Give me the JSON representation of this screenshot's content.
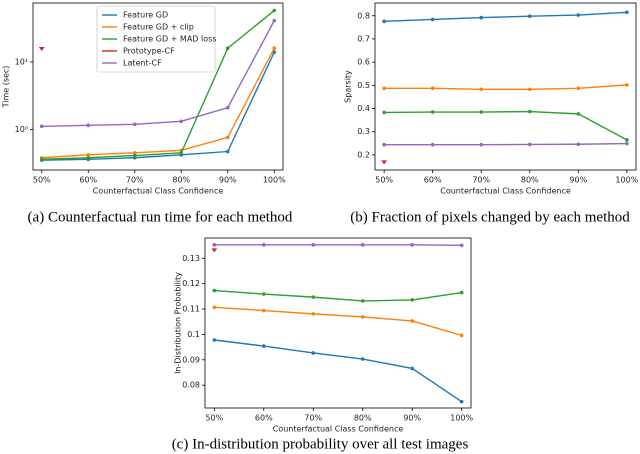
{
  "chart_data": [
    {
      "type": "line",
      "caption": "(a) Counterfactual run time for each method",
      "xlabel": "Counterfactual Class Confidence",
      "ylabel": "Time (sec)",
      "categories": [
        "50%",
        "60%",
        "70%",
        "80%",
        "90%",
        "100%"
      ],
      "yscale": "log",
      "ylim": [
        0.25,
        75
      ],
      "yticks": [
        {
          "value": 1,
          "label": "10⁰"
        },
        {
          "value": 10,
          "label": "10¹"
        }
      ],
      "legend": "upper left",
      "series": [
        {
          "name": "Feature GD",
          "color": "#1f77b4",
          "values": [
            0.35,
            0.36,
            0.38,
            0.42,
            0.47,
            14
          ]
        },
        {
          "name": "Feature GD + clip",
          "color": "#ff7f0e",
          "values": [
            0.38,
            0.42,
            0.45,
            0.49,
            0.76,
            16
          ]
        },
        {
          "name": "Feature GD + MAD loss",
          "color": "#2ca02c",
          "values": [
            0.36,
            0.38,
            0.41,
            0.45,
            16,
            58
          ]
        },
        {
          "name": "Prototype-CF",
          "color": "#d62728",
          "values": [
            15.6,
            null,
            null,
            null,
            null,
            null
          ]
        },
        {
          "name": "Latent-CF",
          "color": "#9467bd",
          "values": [
            1.11,
            1.15,
            1.19,
            1.32,
            2.1,
            41
          ]
        }
      ]
    },
    {
      "type": "line",
      "caption": "(b) Fraction of pixels changed by each method",
      "xlabel": "Counterfactual Class Confidence",
      "ylabel": "Sparsity",
      "categories": [
        "50%",
        "60%",
        "70%",
        "80%",
        "90%",
        "100%"
      ],
      "yscale": "linear",
      "ylim": [
        0.135,
        0.855
      ],
      "yticks": [
        0.2,
        0.3,
        0.4,
        0.5,
        0.6,
        0.7,
        0.8
      ],
      "series": [
        {
          "color": "#1f77b4",
          "values": [
            0.776,
            0.784,
            0.792,
            0.798,
            0.803,
            0.815
          ]
        },
        {
          "color": "#ff7f0e",
          "values": [
            0.487,
            0.487,
            0.483,
            0.483,
            0.487,
            0.502
          ]
        },
        {
          "color": "#2ca02c",
          "values": [
            0.383,
            0.385,
            0.385,
            0.387,
            0.377,
            0.265
          ]
        },
        {
          "color": "#d62728",
          "values": [
            0.168,
            null,
            null,
            null,
            null,
            null
          ]
        },
        {
          "color": "#9467bd",
          "values": [
            0.244,
            0.244,
            0.244,
            0.245,
            0.246,
            0.249
          ]
        }
      ]
    },
    {
      "type": "line",
      "caption": "(c) In-distribution probability over all test images",
      "xlabel": "Counterfactual Class Confidence",
      "ylabel": "In-Distribution Probability",
      "categories": [
        "50%",
        "60%",
        "70%",
        "80%",
        "90%",
        "100%"
      ],
      "yscale": "linear",
      "ylim": [
        0.071,
        0.138
      ],
      "yticks": [
        0.08,
        0.09,
        0.1,
        0.11,
        0.12,
        0.13
      ],
      "series": [
        {
          "color": "#1f77b4",
          "values": [
            0.0978,
            0.0954,
            0.0927,
            0.0903,
            0.0866,
            0.0735
          ]
        },
        {
          "color": "#ff7f0e",
          "values": [
            0.1107,
            0.1094,
            0.1081,
            0.1069,
            0.1053,
            0.0996
          ]
        },
        {
          "color": "#2ca02c",
          "values": [
            0.1173,
            0.1159,
            0.1147,
            0.1132,
            0.1136,
            0.1165
          ]
        },
        {
          "color": "#d62728",
          "values": [
            0.1331,
            null,
            null,
            null,
            null,
            null
          ]
        },
        {
          "color": "#9467bd",
          "values": [
            0.1353,
            0.1353,
            0.1353,
            0.1353,
            0.1353,
            0.1351
          ]
        }
      ]
    }
  ]
}
